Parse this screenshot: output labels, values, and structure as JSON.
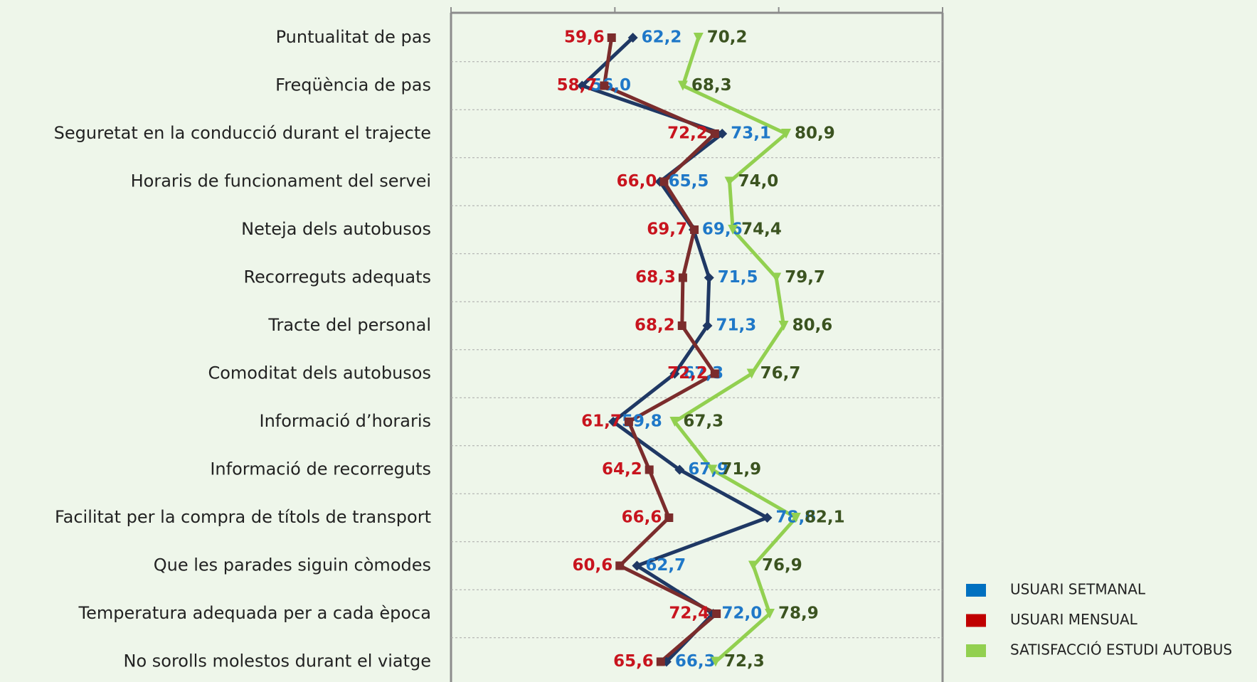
{
  "chart_data": {
    "type": "line",
    "orientation": "horizontal",
    "categories": [
      "Puntualitat de pas",
      "Freqüència de pas",
      "Seguretat en la conducció durant el trajecte",
      "Horaris de funcionament del servei",
      "Neteja dels autobusos",
      "Recorreguts adequats",
      "Tracte del personal",
      "Comoditat dels autobusos",
      "Informació d’horaris",
      "Informació de recorreguts",
      "Facilitat per la compra de títols de transport",
      "Que les parades siguin còmodes",
      "Temperatura adequada per a cada època",
      "No sorolls molestos durant el viatge"
    ],
    "series": [
      {
        "name": "USUARI SETMANAL",
        "color": "#0070c0",
        "line_color": "#1f3864",
        "label_color": "#1f78c8",
        "marker": "diamond",
        "values": [
          62.2,
          56.0,
          73.1,
          65.5,
          69.6,
          71.5,
          71.3,
          67.3,
          59.8,
          67.9,
          78.6,
          62.7,
          72.0,
          66.3
        ],
        "value_labels": [
          "62,2",
          "56,0",
          "73,1",
          "65,5",
          "69,6",
          "71,5",
          "71,3",
          "67,3",
          "59,8",
          "67,9",
          "78,6",
          "62,7",
          "72,0",
          "66,3"
        ]
      },
      {
        "name": "USUARI MENSUAL",
        "color": "#c00000",
        "line_color": "#7b2c2c",
        "label_color": "#c8141e",
        "marker": "square",
        "values": [
          59.6,
          58.7,
          72.2,
          66.0,
          69.7,
          68.3,
          68.2,
          72.2,
          61.7,
          64.2,
          66.6,
          60.6,
          72.4,
          65.6
        ],
        "value_labels": [
          "59,6",
          "58,7",
          "72,2",
          "66,0",
          "69,7",
          "68,3",
          "68,2",
          "72,2",
          "61,7",
          "64,2",
          "66,6",
          "60,6",
          "72,4",
          "65,6"
        ]
      },
      {
        "name": "SATISFACCIÓ ESTUDI AUTOBUS",
        "color": "#92d050",
        "line_color": "#92d050",
        "label_color": "#3b5320",
        "marker": "triangle",
        "values": [
          70.2,
          68.3,
          80.9,
          74.0,
          74.4,
          79.7,
          80.6,
          76.7,
          67.3,
          71.9,
          82.1,
          76.9,
          78.9,
          72.3
        ],
        "value_labels": [
          "70,2",
          "68,3",
          "80,9",
          "74,0",
          "74,4",
          "79,7",
          "80,6",
          "76,7",
          "67,3",
          "71,9",
          "82,1",
          "76,9",
          "78,9",
          "72,3"
        ]
      }
    ],
    "xlim": [
      40,
      100
    ],
    "xticks": [
      40,
      60,
      80,
      100
    ],
    "legend": "bottom-right"
  }
}
